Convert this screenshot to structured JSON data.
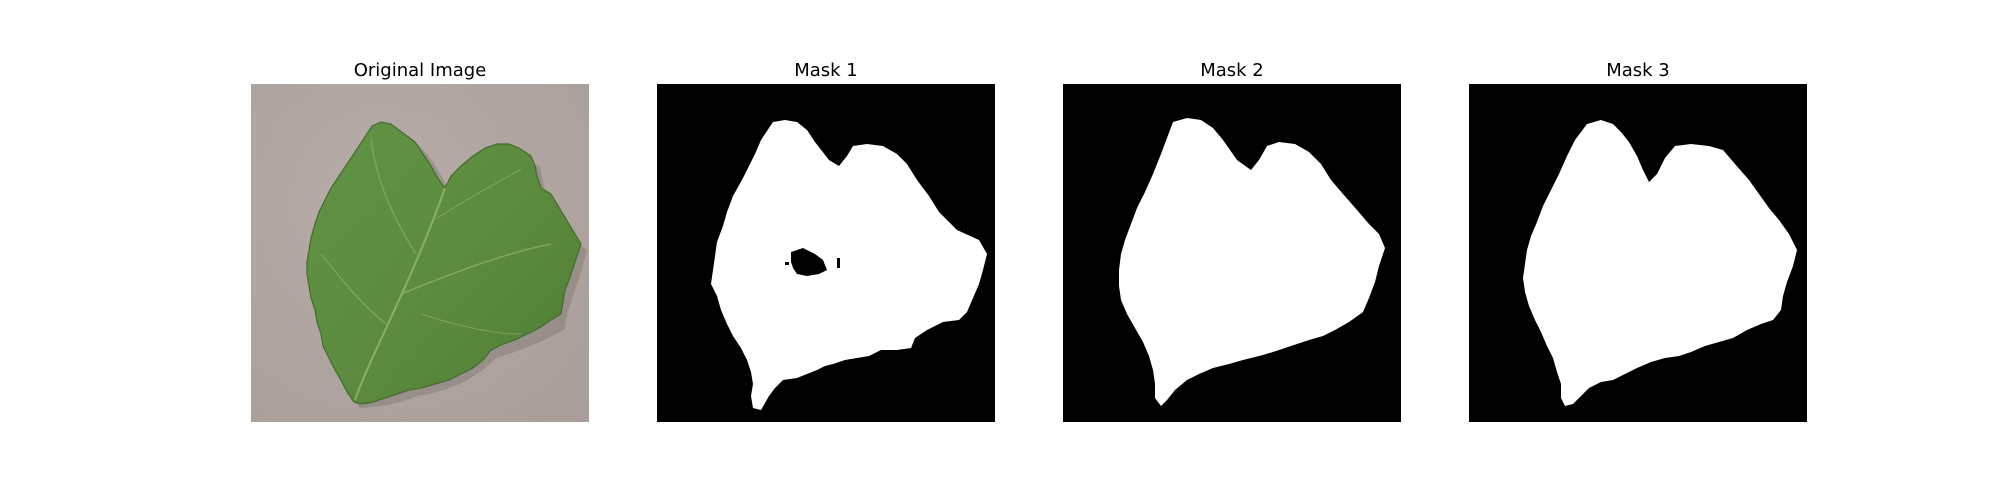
{
  "figure": {
    "panels": [
      {
        "title": "Original Image"
      },
      {
        "title": "Mask 1"
      },
      {
        "title": "Mask 2"
      },
      {
        "title": "Mask 3"
      }
    ]
  },
  "colors": {
    "figure_background": "#ffffff",
    "mask_background": "#000000",
    "mask_foreground": "#ffffff",
    "photo_background": "#b3a8a3",
    "leaf_green": "#5a8a3c",
    "leaf_dark_green": "#4a7a2e",
    "leaf_vein": "#8fb266"
  }
}
